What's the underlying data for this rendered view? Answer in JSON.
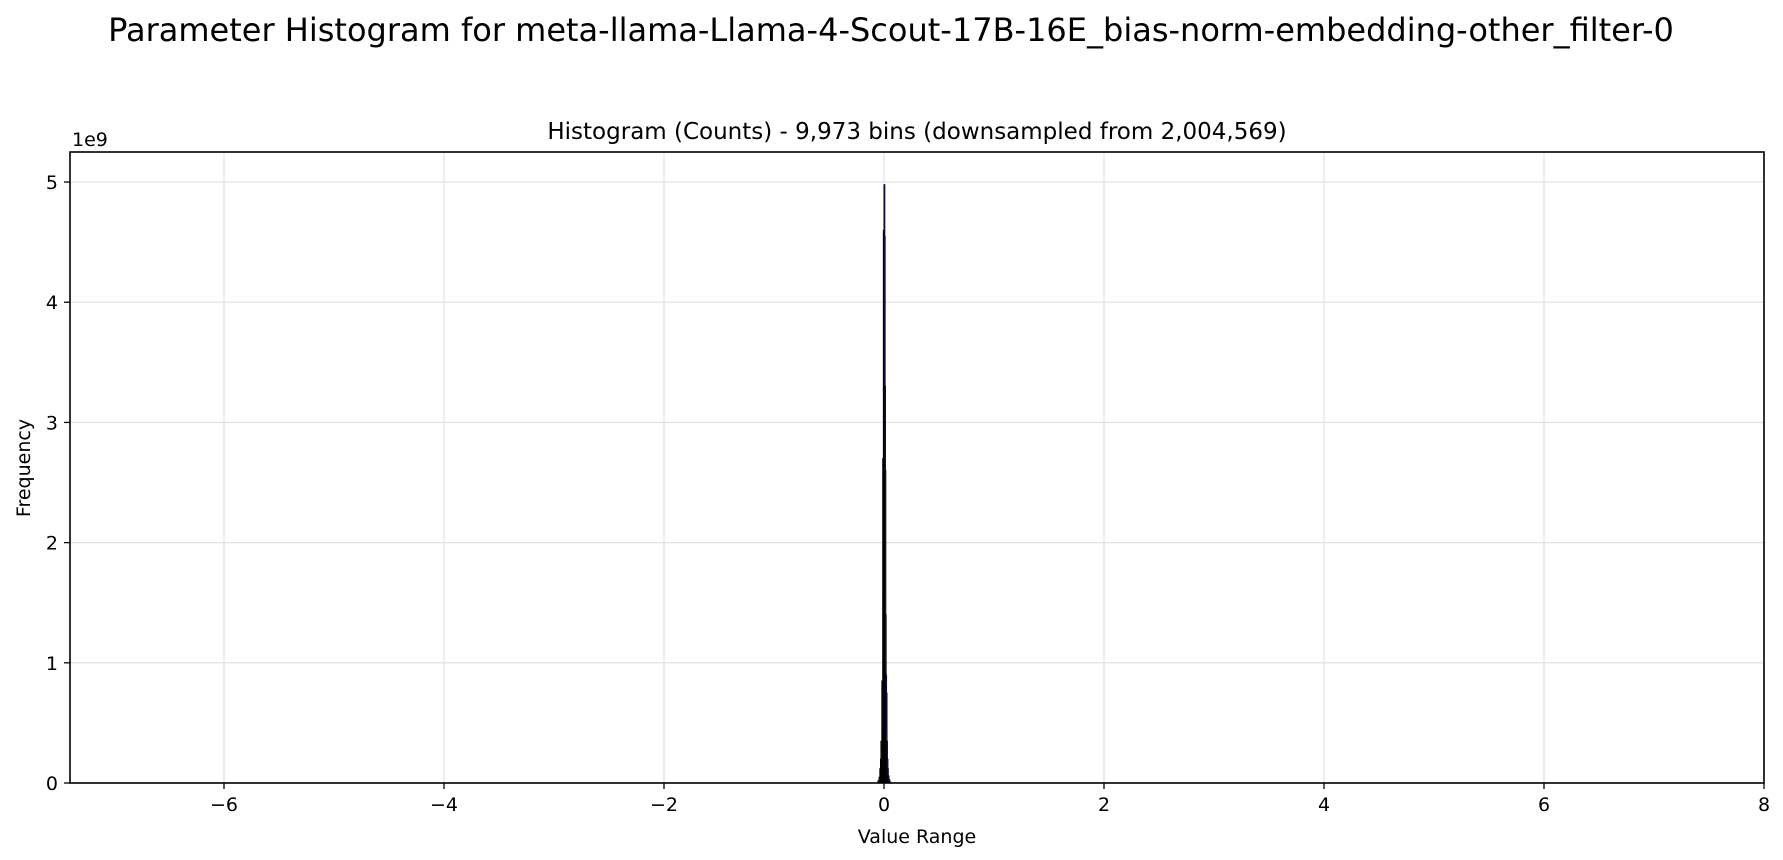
{
  "figure": {
    "suptitle": "Parameter Histogram for meta-llama-Llama-4-Scout-17B-16E_bias-norm-embedding-other_filter-0"
  },
  "chart_data": {
    "type": "bar",
    "title": "Histogram (Counts) - 9,973 bins (downsampled from 2,004,569)",
    "xlabel": "Value Range",
    "ylabel": "Frequency",
    "y_offset_label": "1e9",
    "xlim": [
      -7.4,
      8.0
    ],
    "ylim": [
      0,
      5.25
    ],
    "y_scale_multiplier": 1000000000,
    "grid": true,
    "legend": "none",
    "x_ticks": [
      -6,
      -4,
      -2,
      0,
      2,
      4,
      6,
      8
    ],
    "x_tick_labels": [
      "−6",
      "−4",
      "−2",
      "0",
      "2",
      "4",
      "6",
      "8"
    ],
    "y_ticks": [
      0,
      1,
      2,
      3,
      4,
      5
    ],
    "y_tick_labels": [
      "0",
      "1",
      "2",
      "3",
      "4",
      "5"
    ],
    "bar_color": "#1f1b6e",
    "edge_color": "#000000",
    "grid_color": "#e3e3e3",
    "bins": [
      {
        "x": -0.055,
        "y": 0.02
      },
      {
        "x": -0.045,
        "y": 0.05
      },
      {
        "x": -0.038,
        "y": 0.12
      },
      {
        "x": -0.032,
        "y": 0.2
      },
      {
        "x": -0.028,
        "y": 0.35
      },
      {
        "x": -0.024,
        "y": 0.18
      },
      {
        "x": -0.02,
        "y": 0.85
      },
      {
        "x": -0.016,
        "y": 0.45
      },
      {
        "x": -0.012,
        "y": 2.7
      },
      {
        "x": -0.009,
        "y": 1.6
      },
      {
        "x": -0.006,
        "y": 4.6
      },
      {
        "x": -0.003,
        "y": 3.9
      },
      {
        "x": 0.0,
        "y": 4.98
      },
      {
        "x": 0.003,
        "y": 4.55
      },
      {
        "x": 0.006,
        "y": 3.3
      },
      {
        "x": 0.009,
        "y": 2.6
      },
      {
        "x": 0.012,
        "y": 1.4
      },
      {
        "x": 0.016,
        "y": 0.9
      },
      {
        "x": 0.02,
        "y": 0.75
      },
      {
        "x": 0.024,
        "y": 0.35
      },
      {
        "x": 0.028,
        "y": 0.2
      },
      {
        "x": 0.032,
        "y": 0.12
      },
      {
        "x": 0.038,
        "y": 0.06
      },
      {
        "x": 0.045,
        "y": 0.03
      },
      {
        "x": 0.055,
        "y": 0.01
      }
    ]
  }
}
